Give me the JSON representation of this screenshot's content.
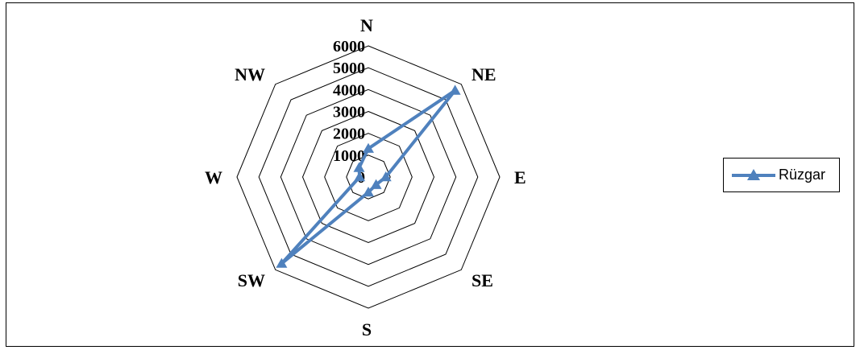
{
  "chart_data": {
    "type": "radar",
    "categories": [
      "N",
      "NE",
      "E",
      "SE",
      "S",
      "SW",
      "W",
      "NW"
    ],
    "series": [
      {
        "name": "Rüzgar",
        "values": [
          1300,
          5600,
          800,
          500,
          700,
          5600,
          400,
          600
        ],
        "color": "#4F81BD",
        "marker": "triangle"
      }
    ],
    "rlim": [
      0,
      6000
    ],
    "ticks": [
      "0",
      "1000",
      "2000",
      "3000",
      "4000",
      "5000",
      "6000"
    ],
    "tick_values": [
      0,
      1000,
      2000,
      3000,
      4000,
      5000,
      6000
    ],
    "grid": true,
    "legend_position": "right"
  }
}
